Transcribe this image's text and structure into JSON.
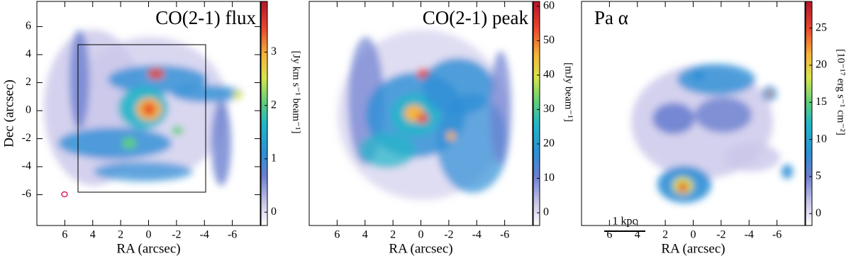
{
  "chart_data": [
    {
      "type": "image",
      "title": "CO(2-1) flux",
      "xlabel": "RA (arcsec)",
      "ylabel": "Dec (arcsec)",
      "xlim": [
        8,
        -8
      ],
      "xticks": [
        6,
        4,
        2,
        0,
        -2,
        -4,
        -6
      ],
      "ylim": [
        -8.2,
        7.8
      ],
      "yticks": [
        -6,
        -4,
        -2,
        0,
        2,
        4,
        6
      ],
      "colorbar_label": "[Jy km s⁻¹ beam⁻¹]",
      "colorbar_lim": [
        -0.25,
        3.95
      ],
      "colorbar_ticks": [
        0,
        1,
        2,
        3
      ]
    },
    {
      "type": "image",
      "title": "CO(2-1) peak",
      "xlabel": "RA (arcsec)",
      "xlim": [
        8,
        -8
      ],
      "xticks": [
        6,
        4,
        2,
        0,
        -2,
        -4,
        -6
      ],
      "colorbar_label": "[mJy beam⁻¹]",
      "colorbar_lim": [
        -3.7,
        61.4
      ],
      "colorbar_ticks": [
        0,
        10,
        20,
        30,
        40,
        50,
        60
      ]
    },
    {
      "type": "image",
      "title": "Pa α",
      "xlabel": "RA (arcsec)",
      "xlim": [
        8,
        -8
      ],
      "xticks": [
        6,
        4,
        2,
        0,
        -2,
        -4,
        -6
      ],
      "colorbar_label": "[10⁻¹⁷ erg s⁻¹ cm⁻²]",
      "colorbar_lim": [
        -1.6,
        28.6
      ],
      "colorbar_ticks": [
        0,
        5,
        10,
        15,
        20,
        25
      ],
      "annotation": "1 kpc"
    }
  ]
}
